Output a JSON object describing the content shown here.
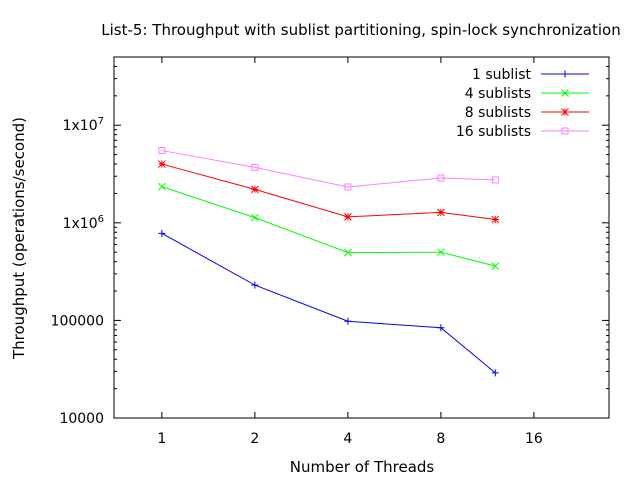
{
  "chart_data": {
    "type": "line",
    "title": "List-5: Throughput with sublist partitioning, spin-lock synchronization",
    "xlabel": "Number of Threads",
    "ylabel": "Throughput (operations/second)",
    "x_scale": "log2",
    "y_scale": "log10",
    "xlim": [
      0.7,
      28
    ],
    "ylim": [
      10000,
      50000000
    ],
    "x_ticks": [
      {
        "value": 1,
        "label": "1"
      },
      {
        "value": 2,
        "label": "2"
      },
      {
        "value": 4,
        "label": "4"
      },
      {
        "value": 8,
        "label": "8"
      },
      {
        "value": 16,
        "label": "16"
      }
    ],
    "y_ticks": [
      {
        "value": 10000,
        "label": "10000"
      },
      {
        "value": 100000,
        "label": "100000"
      },
      {
        "value": 1000000,
        "label": "1x10",
        "exp": "6"
      },
      {
        "value": 10000000,
        "label": "1x10",
        "exp": "7"
      }
    ],
    "grid": false,
    "legend_position": "top-right",
    "x": [
      1,
      2,
      4,
      8,
      12
    ],
    "series": [
      {
        "name": "1 sublist",
        "color": "#0000ff",
        "marker": "plus",
        "values": [
          780000,
          230000,
          98000,
          84000,
          29000
        ]
      },
      {
        "name": "4 sublists",
        "color": "#00ff00",
        "marker": "cross",
        "values": [
          2350000,
          1130000,
          495000,
          500000,
          360000
        ]
      },
      {
        "name": "8 sublists",
        "color": "#ff0000",
        "marker": "star",
        "values": [
          4000000,
          2200000,
          1150000,
          1280000,
          1080000
        ]
      },
      {
        "name": "16 sublists",
        "color": "#ff80ff",
        "marker": "square",
        "values": [
          5500000,
          3700000,
          2330000,
          2880000,
          2750000
        ]
      }
    ]
  }
}
